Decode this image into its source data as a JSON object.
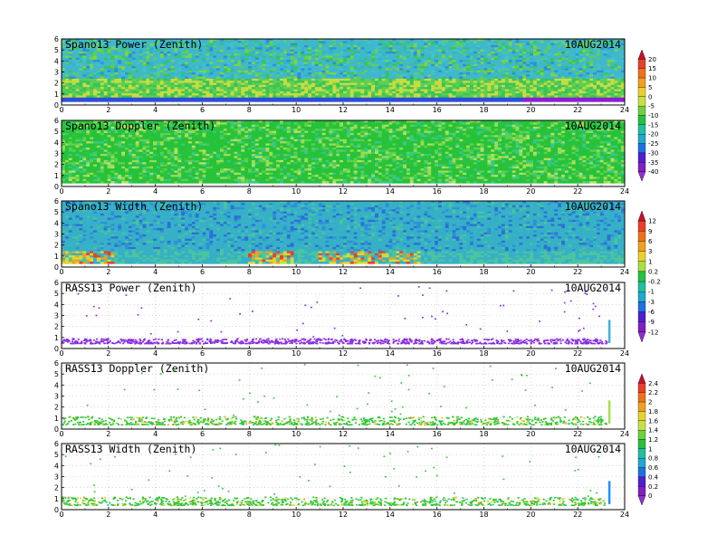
{
  "chart_data": [
    {
      "type": "heatmap",
      "title": "Spano13 Power (Zenith)",
      "date": "10AUG2014",
      "xlim": [
        0,
        24
      ],
      "ylim": [
        0,
        6
      ],
      "xticks": [
        "0",
        "2",
        "4",
        "6",
        "8",
        "10",
        "12",
        "14",
        "16",
        "18",
        "20",
        "22",
        "24"
      ],
      "yticks": [
        "0",
        "1",
        "2",
        "3",
        "4",
        "5",
        "6"
      ],
      "colorbar": "power",
      "background_fill": "#3fbcd0",
      "value_pattern": [
        {
          "y": [
            0.3,
            0.7
          ],
          "value": -40,
          "note": "deep purple band at bottom, strongest 20–24"
        },
        {
          "y": [
            0.8,
            2.6
          ],
          "value": -15,
          "note": "green/yellow layer"
        },
        {
          "y": [
            2.6,
            6.0
          ],
          "value": -25,
          "note": "cyan with scattered green/blue"
        }
      ]
    },
    {
      "type": "heatmap",
      "title": "Spano13 Doppler (Zenith)",
      "date": "10AUG2014",
      "xlim": [
        0,
        24
      ],
      "ylim": [
        0,
        6
      ],
      "xticks": [
        "0",
        "2",
        "4",
        "6",
        "8",
        "10",
        "12",
        "14",
        "16",
        "18",
        "20",
        "22",
        "24"
      ],
      "yticks": [
        "0",
        "1",
        "2",
        "3",
        "4",
        "5",
        "6"
      ],
      "colorbar": "velocity",
      "background_fill": "#22c437",
      "value_pattern": [
        {
          "y": [
            0.3,
            6.0
          ],
          "value": 1.0,
          "note": "mostly uniform green with light-green patches"
        }
      ]
    },
    {
      "type": "heatmap",
      "title": "Spano13 Width (Zenith)",
      "date": "10AUG2014",
      "xlim": [
        0,
        24
      ],
      "ylim": [
        0,
        6
      ],
      "xticks": [
        "0",
        "2",
        "4",
        "6",
        "8",
        "10",
        "12",
        "14",
        "16",
        "18",
        "20",
        "22",
        "24"
      ],
      "yticks": [
        "0",
        "1",
        "2",
        "3",
        "4",
        "5",
        "6"
      ],
      "colorbar": "width",
      "background_fill": "#36b0c7",
      "value_pattern": [
        {
          "y": [
            0.3,
            1.5
          ],
          "value": 3,
          "note": "yellow/orange/red cells near surface at 0–2, 8–10, 11–15"
        },
        {
          "y": [
            1.5,
            6.0
          ],
          "value": -1,
          "note": "cyan/blue"
        }
      ]
    },
    {
      "type": "scatter",
      "title": "RASS13 Power (Zenith)",
      "date": "10AUG2014",
      "xlim": [
        0,
        24
      ],
      "ylim": [
        0,
        6
      ],
      "xticks": [
        "0",
        "2",
        "4",
        "6",
        "8",
        "10",
        "12",
        "14",
        "16",
        "18",
        "20",
        "22",
        "24"
      ],
      "yticks": [
        "0",
        "1",
        "2",
        "3",
        "4",
        "5",
        "6"
      ],
      "colorbar": "power",
      "series": [
        {
          "color": "#8a2be2",
          "band_y": [
            0.5,
            0.95
          ],
          "note": "dense purple band"
        },
        {
          "color": "#8a2be2",
          "sparse_y": [
            1.0,
            6.0
          ],
          "note": "sparse points aloft"
        },
        {
          "color": "#3fb0e0",
          "x": 23.3,
          "y": [
            0.5,
            2.6
          ],
          "note": "vertical column at ~23.3 h"
        }
      ]
    },
    {
      "type": "scatter",
      "title": "RASS13 Doppler (Zenith)",
      "date": "10AUG2014",
      "xlim": [
        0,
        24
      ],
      "ylim": [
        0,
        6
      ],
      "xticks": [
        "0",
        "2",
        "4",
        "6",
        "8",
        "10",
        "12",
        "14",
        "16",
        "18",
        "20",
        "22",
        "24"
      ],
      "yticks": [
        "0",
        "1",
        "2",
        "3",
        "4",
        "5",
        "6"
      ],
      "colorbar": "doppler",
      "series": [
        {
          "color": "#32c832",
          "band_y": [
            0.45,
            1.2
          ],
          "note": "green band with yellow specks"
        },
        {
          "color": "#32c832",
          "sparse_y": [
            1.2,
            6.0
          ],
          "note": "sparse points aloft"
        },
        {
          "color": "#a0e050",
          "x": 23.3,
          "y": [
            0.5,
            2.6
          ],
          "note": "vertical column at ~23.3 h"
        }
      ]
    },
    {
      "type": "scatter",
      "title": "RASS13 Width (Zenith)",
      "date": "10AUG2014",
      "xlim": [
        0,
        24
      ],
      "ylim": [
        0,
        6
      ],
      "xticks": [
        "0",
        "2",
        "4",
        "6",
        "8",
        "10",
        "12",
        "14",
        "16",
        "18",
        "20",
        "22",
        "24"
      ],
      "yticks": [
        "0",
        "1",
        "2",
        "3",
        "4",
        "5",
        "6"
      ],
      "colorbar": "doppler",
      "series": [
        {
          "color": "#32c832",
          "band_y": [
            0.45,
            1.2
          ],
          "note": "green/cyan band with yellow-red specks"
        },
        {
          "color": "#32c832",
          "sparse_y": [
            1.2,
            6.0
          ],
          "note": "sparse points aloft"
        },
        {
          "color": "#1e90ff",
          "x": 23.3,
          "y": [
            0.5,
            2.6
          ],
          "note": "vertical column at ~23.3 h"
        }
      ]
    }
  ],
  "colorbars": [
    {
      "id": "power",
      "labels": [
        "20",
        "15",
        "10",
        "5",
        "0",
        "-5",
        "-10",
        "-15",
        "-20",
        "-25",
        "-30",
        "-35",
        "-40"
      ],
      "colors": [
        "#c8102e",
        "#e8402a",
        "#f07020",
        "#f0a020",
        "#e8d030",
        "#c8e040",
        "#70d040",
        "#28c040",
        "#20c0a0",
        "#20a8d0",
        "#2070e0",
        "#5020d0",
        "#8020c0",
        "#9030d0"
      ]
    },
    {
      "id": "width",
      "labels": [
        "12",
        "9",
        "6",
        "3",
        "1",
        "0.2",
        "-0.2",
        "-1",
        "-3",
        "-6",
        "-9",
        "-12"
      ],
      "colors": [
        "#c8102e",
        "#e8402a",
        "#f07020",
        "#f0a020",
        "#e8d030",
        "#a8e040",
        "#28c040",
        "#20c0a0",
        "#20a8d0",
        "#2070e0",
        "#5020d0",
        "#8020c0",
        "#9030d0"
      ]
    },
    {
      "id": "doppler",
      "labels": [
        "2.4",
        "2.2",
        "2",
        "1.8",
        "1.6",
        "1.4",
        "1.2",
        "1",
        "0.8",
        "0.6",
        "0.4",
        "0.2",
        "0"
      ],
      "colors": [
        "#c8102e",
        "#e8402a",
        "#f07020",
        "#f0a020",
        "#e8d030",
        "#c8e040",
        "#70d040",
        "#28c040",
        "#20c0a0",
        "#20a8d0",
        "#2070e0",
        "#5020d0",
        "#8020c0",
        "#9030d0"
      ]
    }
  ]
}
